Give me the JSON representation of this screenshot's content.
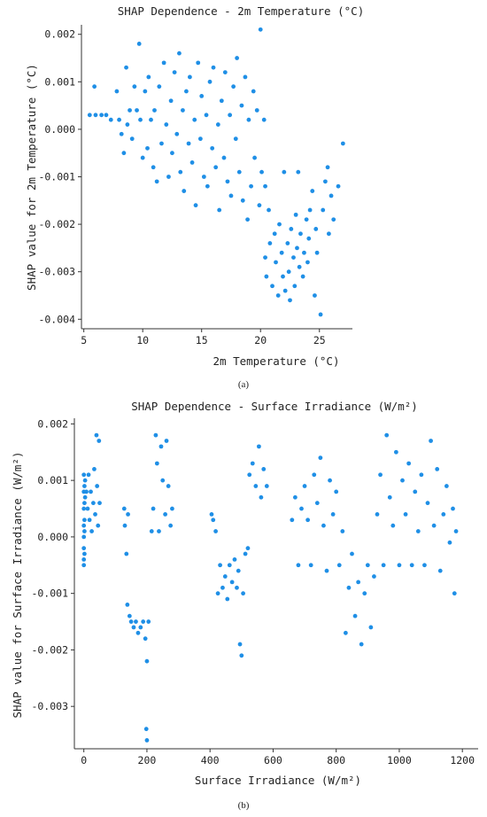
{
  "accent": "#1f8fe6",
  "chart_data": [
    {
      "type": "scatter",
      "title": "SHAP Dependence - 2m Temperature (°C)",
      "xlabel": "2m Temperature (°C)",
      "ylabel": "SHAP value for 2m Temperature (°C)",
      "caption": "(a)",
      "xlim": [
        4.8,
        27.8
      ],
      "ylim": [
        -0.0042,
        0.0022
      ],
      "xticks": [
        5,
        10,
        15,
        20,
        25
      ],
      "yticks": [
        0.002,
        0.001,
        0.0,
        -0.001,
        -0.002,
        -0.003,
        -0.004
      ],
      "xtick_labels": [
        "5",
        "10",
        "15",
        "20",
        "25"
      ],
      "ytick_labels": [
        "0.002",
        "0.001",
        "0.000",
        "-0.001",
        "-0.002",
        "-0.003",
        "-0.004"
      ],
      "grid": false,
      "color": "#1f8fe6",
      "points": [
        [
          5.5,
          0.0003
        ],
        [
          5.9,
          0.0009
        ],
        [
          6.0,
          0.0003
        ],
        [
          6.5,
          0.0003
        ],
        [
          6.9,
          0.0003
        ],
        [
          7.3,
          0.0002
        ],
        [
          7.8,
          0.0008
        ],
        [
          8.0,
          0.0002
        ],
        [
          8.2,
          -0.0001
        ],
        [
          8.4,
          -0.0005
        ],
        [
          8.6,
          0.0013
        ],
        [
          8.7,
          0.0001
        ],
        [
          8.9,
          0.0004
        ],
        [
          9.1,
          -0.0002
        ],
        [
          9.3,
          0.0009
        ],
        [
          9.5,
          0.0004
        ],
        [
          9.7,
          0.0018
        ],
        [
          9.8,
          0.0002
        ],
        [
          10.0,
          -0.0006
        ],
        [
          10.2,
          0.0008
        ],
        [
          10.4,
          -0.0004
        ],
        [
          10.5,
          0.0011
        ],
        [
          10.7,
          0.0002
        ],
        [
          10.9,
          -0.0008
        ],
        [
          11.0,
          0.0004
        ],
        [
          11.2,
          -0.0011
        ],
        [
          11.4,
          0.0009
        ],
        [
          11.6,
          -0.0003
        ],
        [
          11.8,
          0.0014
        ],
        [
          12.0,
          0.0001
        ],
        [
          12.2,
          -0.001
        ],
        [
          12.4,
          0.0006
        ],
        [
          12.5,
          -0.0005
        ],
        [
          12.7,
          0.0012
        ],
        [
          12.9,
          -0.0001
        ],
        [
          13.1,
          0.0016
        ],
        [
          13.2,
          -0.0009
        ],
        [
          13.4,
          0.0004
        ],
        [
          13.5,
          -0.0013
        ],
        [
          13.7,
          0.0008
        ],
        [
          13.9,
          -0.0003
        ],
        [
          14.0,
          0.0011
        ],
        [
          14.2,
          -0.0007
        ],
        [
          14.4,
          0.0002
        ],
        [
          14.5,
          -0.0016
        ],
        [
          14.7,
          0.0014
        ],
        [
          14.9,
          -0.0002
        ],
        [
          15.0,
          0.0007
        ],
        [
          15.2,
          -0.001
        ],
        [
          15.4,
          0.0003
        ],
        [
          15.5,
          -0.0012
        ],
        [
          15.7,
          0.001
        ],
        [
          15.9,
          -0.0004
        ],
        [
          16.0,
          0.0013
        ],
        [
          16.2,
          -0.0008
        ],
        [
          16.4,
          0.0001
        ],
        [
          16.5,
          -0.0017
        ],
        [
          16.7,
          0.0006
        ],
        [
          16.9,
          -0.0006
        ],
        [
          17.0,
          0.0012
        ],
        [
          17.2,
          -0.0011
        ],
        [
          17.4,
          0.0003
        ],
        [
          17.5,
          -0.0014
        ],
        [
          17.7,
          0.0009
        ],
        [
          17.9,
          -0.0002
        ],
        [
          18.0,
          0.0015
        ],
        [
          18.2,
          -0.0009
        ],
        [
          18.4,
          0.0005
        ],
        [
          18.5,
          -0.0015
        ],
        [
          18.7,
          0.0011
        ],
        [
          18.9,
          -0.0019
        ],
        [
          19.0,
          0.0002
        ],
        [
          19.2,
          -0.0012
        ],
        [
          19.4,
          0.0008
        ],
        [
          19.5,
          -0.0006
        ],
        [
          19.7,
          0.0004
        ],
        [
          19.9,
          -0.0016
        ],
        [
          20.0,
          0.0021
        ],
        [
          20.1,
          -0.0009
        ],
        [
          20.3,
          0.0002
        ],
        [
          20.4,
          -0.0012
        ],
        [
          20.7,
          -0.0017
        ],
        [
          20.4,
          -0.0027
        ],
        [
          20.5,
          -0.0031
        ],
        [
          20.8,
          -0.0024
        ],
        [
          21.0,
          -0.0033
        ],
        [
          21.2,
          -0.0022
        ],
        [
          21.3,
          -0.0028
        ],
        [
          21.5,
          -0.0035
        ],
        [
          21.6,
          -0.002
        ],
        [
          21.8,
          -0.0026
        ],
        [
          21.9,
          -0.0031
        ],
        [
          22.0,
          -0.0009
        ],
        [
          22.1,
          -0.0034
        ],
        [
          22.3,
          -0.0024
        ],
        [
          22.4,
          -0.003
        ],
        [
          22.5,
          -0.0036
        ],
        [
          22.6,
          -0.0021
        ],
        [
          22.8,
          -0.0027
        ],
        [
          22.9,
          -0.0033
        ],
        [
          23.0,
          -0.0018
        ],
        [
          23.1,
          -0.0025
        ],
        [
          23.2,
          -0.0009
        ],
        [
          23.3,
          -0.0029
        ],
        [
          23.4,
          -0.0022
        ],
        [
          23.6,
          -0.0031
        ],
        [
          23.7,
          -0.0026
        ],
        [
          23.9,
          -0.0019
        ],
        [
          24.0,
          -0.0028
        ],
        [
          24.1,
          -0.0023
        ],
        [
          24.2,
          -0.0017
        ],
        [
          24.4,
          -0.0013
        ],
        [
          24.6,
          -0.0035
        ],
        [
          24.7,
          -0.0021
        ],
        [
          24.8,
          -0.0026
        ],
        [
          25.1,
          -0.0039
        ],
        [
          25.3,
          -0.0017
        ],
        [
          25.5,
          -0.0011
        ],
        [
          25.7,
          -0.0008
        ],
        [
          25.8,
          -0.0022
        ],
        [
          26.0,
          -0.0014
        ],
        [
          26.2,
          -0.0019
        ],
        [
          26.6,
          -0.0012
        ],
        [
          27.0,
          -0.0003
        ]
      ]
    },
    {
      "type": "scatter",
      "title": "SHAP Dependence - Surface Irradiance (W/m²)",
      "xlabel": "Surface Irradiance (W/m²)",
      "ylabel": "SHAP value for Surface Irradiance (W/m²)",
      "caption": "(b)",
      "xlim": [
        -30,
        1250
      ],
      "ylim": [
        -0.00375,
        0.0021
      ],
      "xticks": [
        0,
        200,
        400,
        600,
        800,
        1000,
        1200
      ],
      "yticks": [
        0.002,
        0.001,
        0.0,
        -0.001,
        -0.002,
        -0.003
      ],
      "xtick_labels": [
        "0",
        "200",
        "400",
        "600",
        "800",
        "1000",
        "1200"
      ],
      "ytick_labels": [
        "0.002",
        "0.001",
        "0.000",
        "-0.001",
        "-0.002",
        "-0.003"
      ],
      "grid": false,
      "color": "#1f8fe6",
      "points": [
        [
          0,
          0.0011
        ],
        [
          0,
          0.0008
        ],
        [
          0,
          0.0005
        ],
        [
          0,
          0.0002
        ],
        [
          0,
          0.0
        ],
        [
          0,
          -0.0002
        ],
        [
          0,
          -0.0004
        ],
        [
          0,
          -0.0005
        ],
        [
          2,
          0.0009
        ],
        [
          2,
          0.0006
        ],
        [
          2,
          0.0003
        ],
        [
          2,
          0.0001
        ],
        [
          2,
          -0.0003
        ],
        [
          4,
          0.001
        ],
        [
          4,
          0.0007
        ],
        [
          8,
          0.0008
        ],
        [
          12,
          0.0005
        ],
        [
          15,
          0.0011
        ],
        [
          18,
          0.0003
        ],
        [
          22,
          0.0008
        ],
        [
          25,
          0.0001
        ],
        [
          30,
          0.0006
        ],
        [
          33,
          0.0012
        ],
        [
          36,
          0.0004
        ],
        [
          40,
          0.0018
        ],
        [
          42,
          0.0009
        ],
        [
          45,
          0.0002
        ],
        [
          48,
          0.0017
        ],
        [
          50,
          0.0006
        ],
        [
          128,
          0.0005
        ],
        [
          130,
          0.0002
        ],
        [
          135,
          -0.0003
        ],
        [
          140,
          0.0004
        ],
        [
          138,
          -0.0012
        ],
        [
          145,
          -0.0014
        ],
        [
          150,
          -0.0015
        ],
        [
          158,
          -0.0016
        ],
        [
          165,
          -0.0015
        ],
        [
          172,
          -0.0017
        ],
        [
          180,
          -0.0016
        ],
        [
          188,
          -0.0015
        ],
        [
          195,
          -0.0018
        ],
        [
          200,
          -0.0022
        ],
        [
          205,
          -0.0015
        ],
        [
          198,
          -0.0034
        ],
        [
          200,
          -0.0036
        ],
        [
          215,
          0.0001
        ],
        [
          220,
          0.0005
        ],
        [
          228,
          0.0018
        ],
        [
          232,
          0.0013
        ],
        [
          238,
          0.0001
        ],
        [
          245,
          0.0016
        ],
        [
          250,
          0.001
        ],
        [
          258,
          0.0004
        ],
        [
          262,
          0.0017
        ],
        [
          268,
          0.0009
        ],
        [
          275,
          0.0002
        ],
        [
          280,
          0.0005
        ],
        [
          405,
          0.0004
        ],
        [
          410,
          0.0003
        ],
        [
          418,
          0.0001
        ],
        [
          425,
          -0.001
        ],
        [
          432,
          -0.0005
        ],
        [
          440,
          -0.0009
        ],
        [
          448,
          -0.0007
        ],
        [
          455,
          -0.0011
        ],
        [
          462,
          -0.0005
        ],
        [
          470,
          -0.0008
        ],
        [
          478,
          -0.0004
        ],
        [
          485,
          -0.0009
        ],
        [
          490,
          -0.0006
        ],
        [
          495,
          -0.0019
        ],
        [
          500,
          -0.0021
        ],
        [
          505,
          -0.001
        ],
        [
          512,
          -0.0003
        ],
        [
          520,
          -0.0002
        ],
        [
          525,
          0.0011
        ],
        [
          535,
          0.0013
        ],
        [
          545,
          0.0009
        ],
        [
          555,
          0.0016
        ],
        [
          562,
          0.0007
        ],
        [
          570,
          0.0012
        ],
        [
          580,
          0.0009
        ],
        [
          660,
          0.0003
        ],
        [
          670,
          0.0007
        ],
        [
          680,
          -0.0005
        ],
        [
          690,
          0.0005
        ],
        [
          700,
          0.0009
        ],
        [
          710,
          0.0003
        ],
        [
          720,
          -0.0005
        ],
        [
          730,
          0.0011
        ],
        [
          740,
          0.0006
        ],
        [
          750,
          0.0014
        ],
        [
          760,
          0.0002
        ],
        [
          770,
          -0.0006
        ],
        [
          780,
          0.001
        ],
        [
          790,
          0.0004
        ],
        [
          800,
          0.0008
        ],
        [
          810,
          -0.0005
        ],
        [
          820,
          0.0001
        ],
        [
          830,
          -0.0017
        ],
        [
          840,
          -0.0009
        ],
        [
          850,
          -0.0003
        ],
        [
          860,
          -0.0014
        ],
        [
          870,
          -0.0008
        ],
        [
          880,
          -0.0019
        ],
        [
          890,
          -0.001
        ],
        [
          900,
          -0.0005
        ],
        [
          910,
          -0.0016
        ],
        [
          920,
          -0.0007
        ],
        [
          930,
          0.0004
        ],
        [
          940,
          0.0011
        ],
        [
          950,
          -0.0005
        ],
        [
          960,
          0.0018
        ],
        [
          970,
          0.0007
        ],
        [
          980,
          0.0002
        ],
        [
          990,
          0.0015
        ],
        [
          1000,
          -0.0005
        ],
        [
          1010,
          0.001
        ],
        [
          1020,
          0.0004
        ],
        [
          1030,
          0.0013
        ],
        [
          1040,
          -0.0005
        ],
        [
          1050,
          0.0008
        ],
        [
          1060,
          0.0001
        ],
        [
          1070,
          0.0011
        ],
        [
          1080,
          -0.0005
        ],
        [
          1090,
          0.0006
        ],
        [
          1100,
          0.0017
        ],
        [
          1110,
          0.0002
        ],
        [
          1120,
          0.0012
        ],
        [
          1130,
          -0.0006
        ],
        [
          1140,
          0.0004
        ],
        [
          1150,
          0.0009
        ],
        [
          1160,
          -0.0001
        ],
        [
          1170,
          0.0005
        ],
        [
          1175,
          -0.001
        ],
        [
          1180,
          0.0001
        ]
      ]
    }
  ]
}
